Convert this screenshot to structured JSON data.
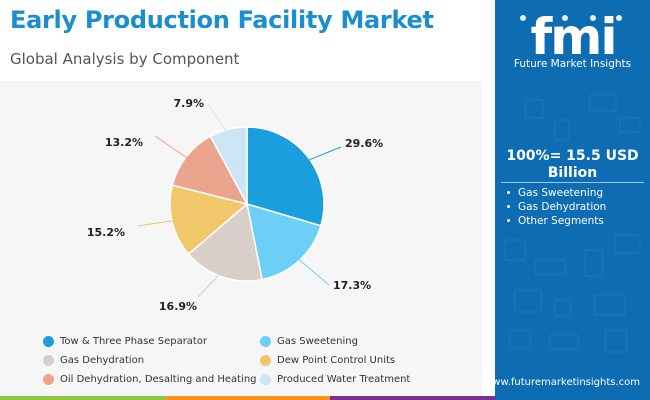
{
  "header": {
    "title": "Early Production Facility Market",
    "subtitle": "Global Analysis by Component"
  },
  "sidebar": {
    "logo_text": "fmi",
    "logo_tagline": "Future Market Insights",
    "total_label": "100%= 15.5 USD Billion",
    "segments": [
      "Gas Sweetening",
      "Gas Dehydration",
      "Other Segments"
    ],
    "url": "www.futuremarketinsights.com"
  },
  "colors": {
    "title": "#1a8fd0",
    "sidebar_bg": "#0e6cb3",
    "panel_bg": "#f6f6f6",
    "bottom_bar": [
      "#8dc63f",
      "#f7941d",
      "#7b2f8e",
      "#0e6cb3"
    ]
  },
  "chart_data": {
    "type": "pie",
    "title": "",
    "start_angle_deg": 0,
    "direction": "clockwise",
    "series": [
      {
        "name": "Tow & Three Phase Separator",
        "value": 29.6,
        "label": "29.6%",
        "color": "#1a9fdc"
      },
      {
        "name": "Gas Sweetening",
        "value": 17.3,
        "label": "17.3%",
        "color": "#6dcff6"
      },
      {
        "name": "Gas Dehydration",
        "value": 16.9,
        "label": "16.9%",
        "color": "#d8cfcb"
      },
      {
        "name": "Dew Point Control Units",
        "value": 15.2,
        "label": "15.2%",
        "color": "#f0c76a"
      },
      {
        "name": "Oil Dehydration, Desalting and Heating",
        "value": 13.2,
        "label": "13.2%",
        "color": "#eba48e"
      },
      {
        "name": "Produced Water Treatment",
        "value": 7.9,
        "label": "7.9%",
        "color": "#cde6f5"
      }
    ],
    "legend_position": "bottom"
  }
}
